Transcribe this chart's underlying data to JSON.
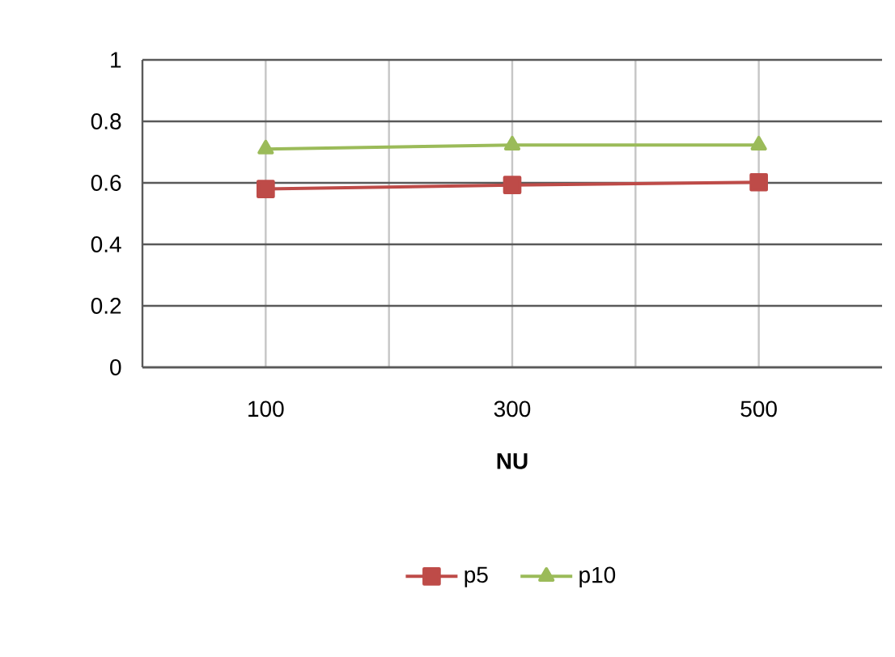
{
  "chart_data": {
    "type": "line",
    "xlabel": "NU",
    "categories": [
      "100",
      "300",
      "500"
    ],
    "series": [
      {
        "name": "p5",
        "color": "#be4b48",
        "marker": "square",
        "values": [
          0.58,
          0.593,
          0.602
        ]
      },
      {
        "name": "p10",
        "color": "#9bbb59",
        "marker": "triangle",
        "values": [
          0.71,
          0.723,
          0.723
        ]
      }
    ],
    "ylim": [
      0,
      1
    ],
    "yticks": [
      0,
      0.2,
      0.4,
      0.6,
      0.8,
      1
    ],
    "grid": true,
    "legend": "bottom",
    "line_style": "solid"
  }
}
